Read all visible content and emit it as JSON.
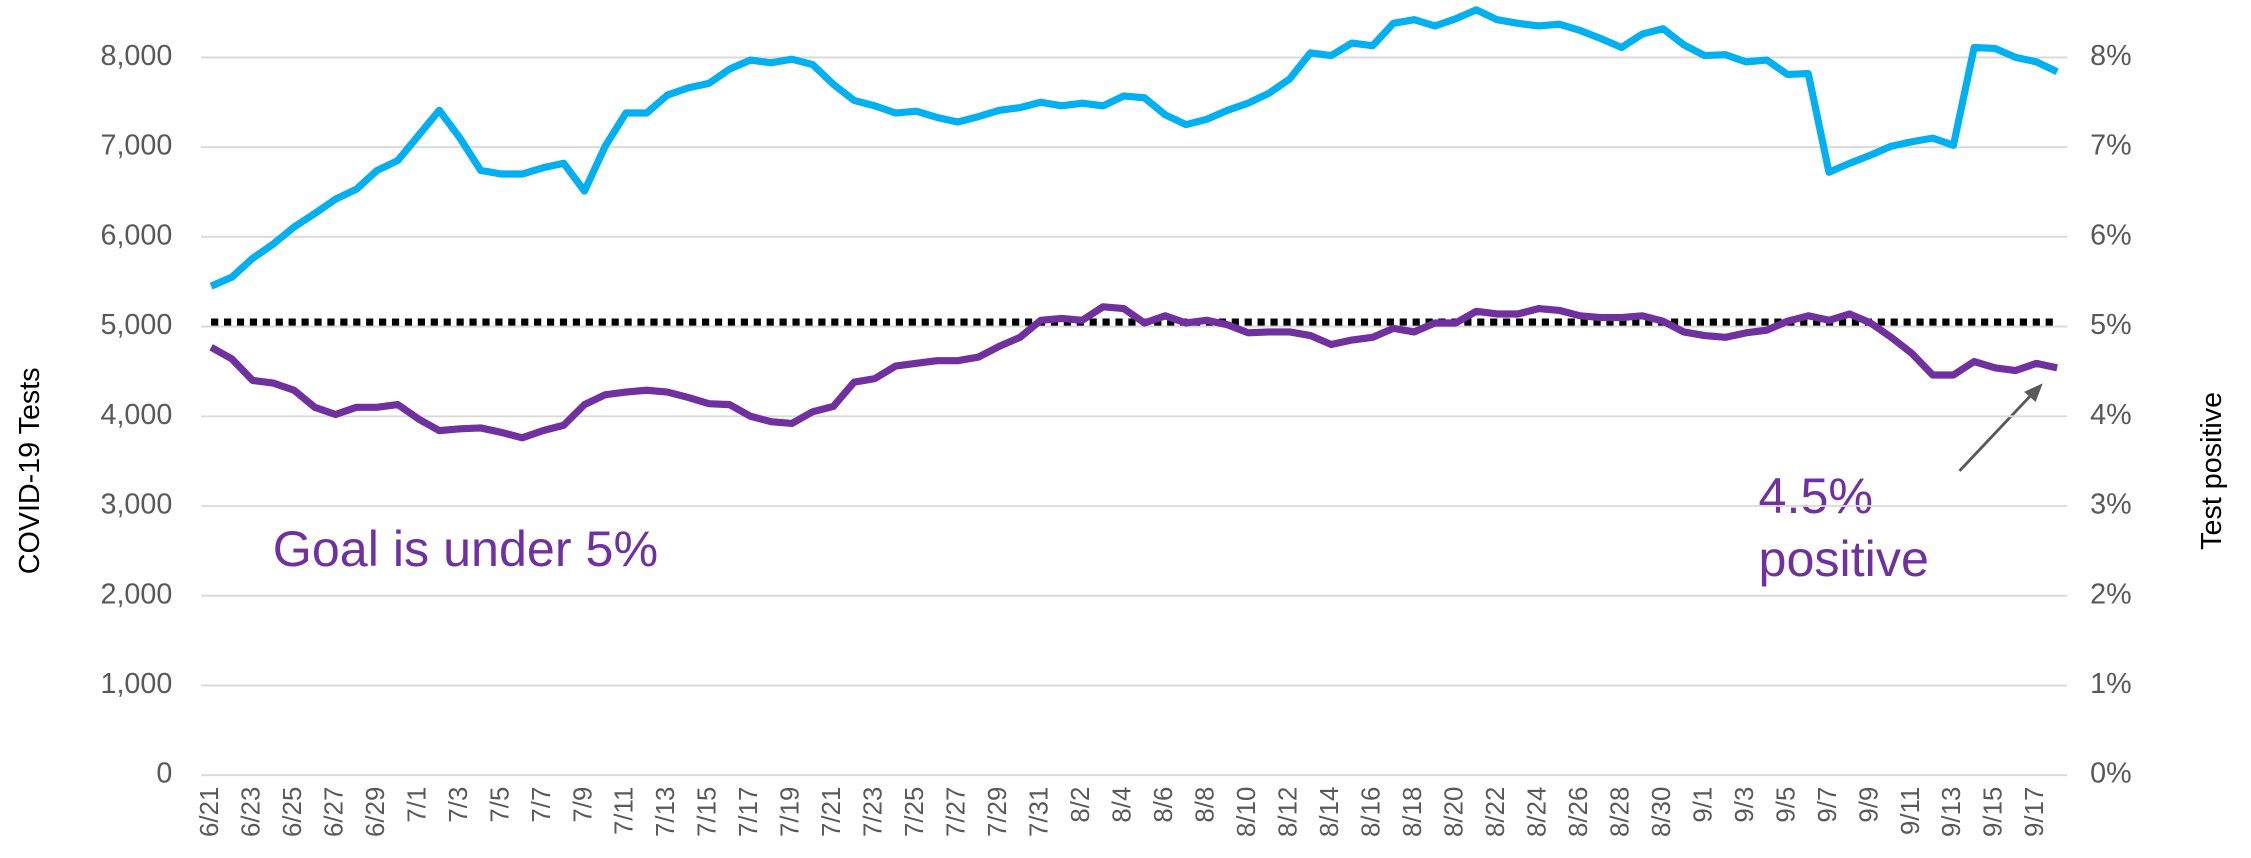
{
  "chart_data": {
    "type": "line",
    "y_label": "COVID-19 Tests",
    "y2_label": "Test positive",
    "categories": [
      "6/21",
      null,
      "6/23",
      null,
      "6/25",
      null,
      "6/27",
      null,
      "6/29",
      null,
      "7/1",
      null,
      "7/3",
      null,
      "7/5",
      null,
      "7/7",
      null,
      "7/9",
      null,
      "7/11",
      null,
      "7/13",
      null,
      "7/15",
      null,
      "7/17",
      null,
      "7/19",
      null,
      "7/21",
      null,
      "7/23",
      null,
      "7/25",
      null,
      "7/27",
      null,
      "7/29",
      null,
      "7/31",
      null,
      "8/2",
      null,
      "8/4",
      null,
      "8/6",
      null,
      "8/8",
      null,
      "8/10",
      null,
      "8/12",
      null,
      "8/14",
      null,
      "8/16",
      null,
      "8/18",
      null,
      "8/20",
      null,
      "8/22",
      null,
      "8/24",
      null,
      "8/26",
      null,
      "8/28",
      null,
      "8/30",
      null,
      "9/1",
      null,
      "9/3",
      null,
      "9/5",
      null,
      "9/7",
      null,
      "9/9",
      null,
      "9/11",
      null,
      "9/13",
      null,
      "9/15",
      null,
      "9/17",
      null
    ],
    "series": [
      {
        "color": "#00b0f0",
        "axis": "y",
        "values": [
          5450,
          5550,
          5760,
          5920,
          6110,
          6260,
          6420,
          6530,
          6740,
          6850,
          7130,
          7410,
          7100,
          6740,
          6700,
          6700,
          6770,
          6820,
          6510,
          7010,
          7380,
          7380,
          7580,
          7660,
          7710,
          7870,
          7970,
          7940,
          7980,
          7920,
          7700,
          7520,
          7460,
          7380,
          7400,
          7330,
          7280,
          7340,
          7410,
          7440,
          7500,
          7460,
          7490,
          7460,
          7570,
          7550,
          7360,
          7250,
          7310,
          7410,
          7490,
          7600,
          7760,
          8050,
          8020,
          8160,
          8130,
          8380,
          8420,
          8350,
          8430,
          8530,
          8420,
          8380,
          8350,
          8370,
          8300,
          8210,
          8110,
          8260,
          8320,
          8140,
          8020,
          8030,
          7950,
          7970,
          7810,
          7820,
          6720,
          6820,
          6910,
          7010,
          7060,
          7100,
          7020,
          8110,
          8100,
          8000,
          7950,
          7840
        ]
      },
      {
        "color": "#7030a0",
        "axis": "y2",
        "values": [
          4.77,
          4.64,
          4.4,
          4.37,
          4.29,
          4.1,
          4.02,
          4.1,
          4.1,
          4.13,
          3.97,
          3.84,
          3.86,
          3.87,
          3.82,
          3.76,
          3.84,
          3.9,
          4.13,
          4.24,
          4.27,
          4.29,
          4.27,
          4.21,
          4.14,
          4.13,
          4.0,
          3.94,
          3.92,
          4.05,
          4.11,
          4.38,
          4.42,
          4.56,
          4.59,
          4.62,
          4.62,
          4.66,
          4.78,
          4.88,
          5.07,
          5.09,
          5.07,
          5.22,
          5.2,
          5.04,
          5.12,
          5.04,
          5.07,
          5.02,
          4.93,
          4.94,
          4.94,
          4.9,
          4.8,
          4.85,
          4.88,
          4.98,
          4.94,
          5.04,
          5.04,
          5.17,
          5.14,
          5.14,
          5.2,
          5.18,
          5.12,
          5.1,
          5.1,
          5.12,
          5.06,
          4.94,
          4.9,
          4.88,
          4.93,
          4.96,
          5.06,
          5.12,
          5.07,
          5.14,
          5.04,
          4.88,
          4.7,
          4.46,
          4.46,
          4.61,
          4.54,
          4.51,
          4.59,
          4.54
        ]
      }
    ],
    "reference_line": {
      "value": 5.05,
      "axis": "y2",
      "color": "#000000"
    },
    "ylim": [
      0,
      8550
    ],
    "yticks": [
      0,
      {
        "value": 1000,
        "label": "1,000"
      },
      {
        "value": 2000,
        "label": "2,000"
      },
      {
        "value": 3000,
        "label": "3,000"
      },
      {
        "value": 4000,
        "label": "4,000"
      },
      {
        "value": 5000,
        "label": "5,000"
      },
      {
        "value": 6000,
        "label": "6,000"
      },
      {
        "value": 7000,
        "label": "7,000"
      },
      {
        "value": 8000,
        "label": "8,000"
      }
    ],
    "y2lim": [
      0,
      8.55
    ],
    "y2ticks": [
      {
        "value": 0,
        "label": "0%"
      },
      {
        "value": 1,
        "label": "1%"
      },
      {
        "value": 2,
        "label": "2%"
      },
      {
        "value": 3,
        "label": "3%"
      },
      {
        "value": 4,
        "label": "4%"
      },
      {
        "value": 5,
        "label": "5%"
      },
      {
        "value": 6,
        "label": "6%"
      },
      {
        "value": 7,
        "label": "7%"
      },
      {
        "value": 8,
        "label": "8%"
      }
    ],
    "grid": true,
    "annotations": [
      {
        "text": "Goal is under 5%"
      },
      {
        "lines": [
          "4.5%",
          "positive"
        ]
      }
    ]
  }
}
